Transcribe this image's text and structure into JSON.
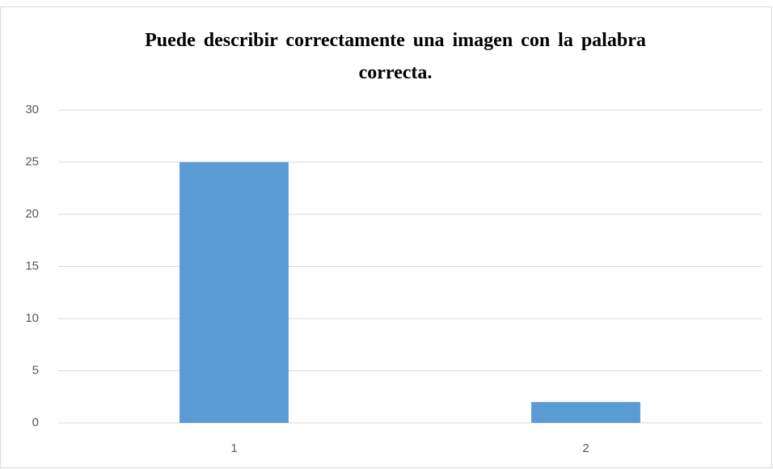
{
  "chart_data": {
    "type": "bar",
    "title": "Puede describir correctamente una imagen con la palabra correcta.",
    "categories": [
      "1",
      "2"
    ],
    "values": [
      25,
      2
    ],
    "color": "#5b9bd5",
    "ylim": [
      0,
      30
    ],
    "yticks": [
      0,
      5,
      10,
      15,
      20,
      25,
      30
    ],
    "grid": true
  }
}
